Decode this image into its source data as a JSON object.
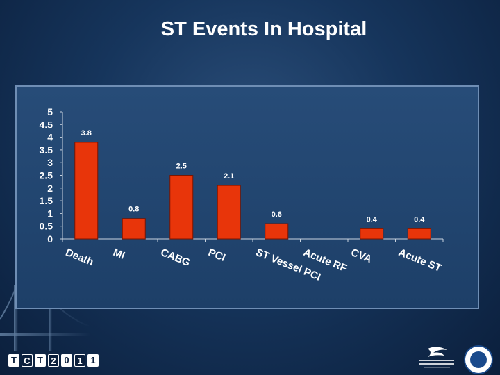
{
  "slide": {
    "title": "ST Events In Hospital"
  },
  "footer": {
    "logo_letters": [
      "T",
      "C",
      "T",
      "2",
      "0",
      "1",
      "1"
    ]
  },
  "chart_data": {
    "type": "bar",
    "title": "",
    "xlabel": "",
    "ylabel": "",
    "categories": [
      "Death",
      "MI",
      "CABG",
      "PCI",
      "ST Vessel PCI",
      "Acute RF",
      "CVA",
      "Acute ST"
    ],
    "values": [
      3.8,
      0.8,
      2.5,
      2.1,
      0.6,
      null,
      0.4,
      0.4
    ],
    "data_labels": [
      "3.8",
      "0.8",
      "2.5",
      "2.1",
      "0.6",
      "",
      "0.4",
      "0.4"
    ],
    "y_ticks": [
      "0",
      "0.5",
      "1",
      "1.5",
      "2",
      "2.5",
      "3",
      "3.5",
      "4",
      "4.5",
      "5"
    ],
    "ylim": [
      0,
      5
    ],
    "grid": false,
    "legend": "none",
    "bar_color": "#e8350a",
    "bar_edge_color": "#7a1500"
  }
}
